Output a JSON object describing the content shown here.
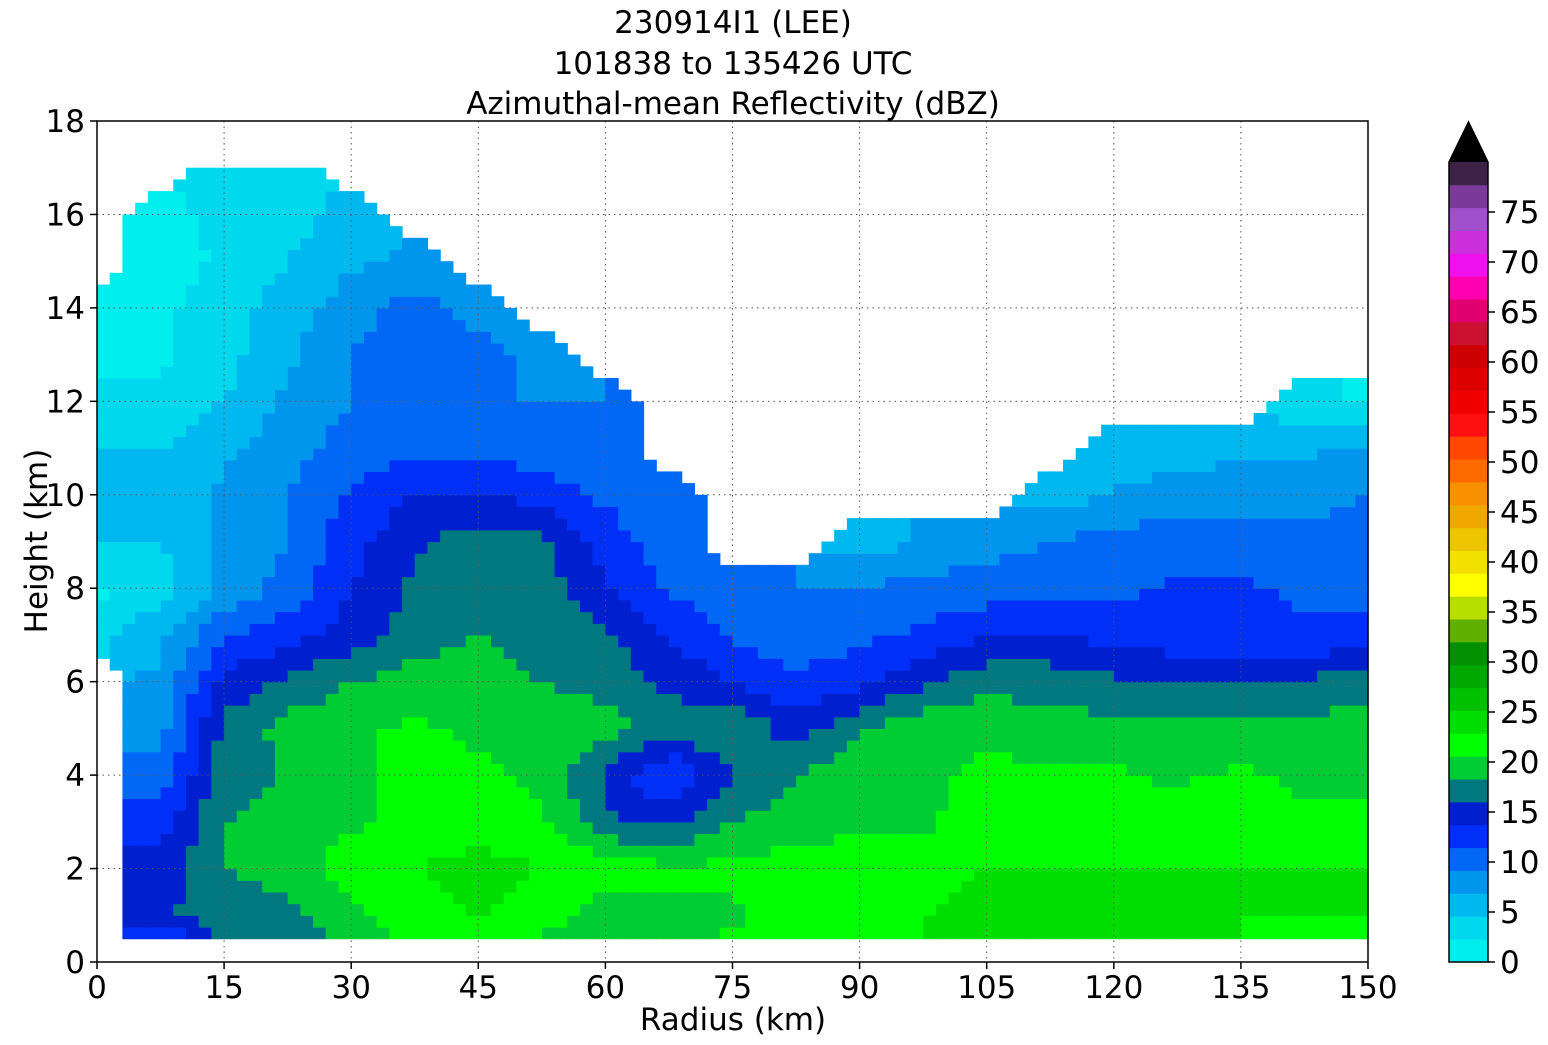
{
  "chart_data": {
    "type": "heatmap",
    "title_lines": [
      "230914I1 (LEE)",
      "101838 to 135426 UTC",
      "Azimuthal-mean Reflectivity (dBZ)"
    ],
    "xlabel": "Radius (km)",
    "ylabel": "Height (km)",
    "xlim": [
      0,
      150
    ],
    "ylim": [
      0,
      18
    ],
    "x_ticks": [
      "0",
      "15",
      "30",
      "45",
      "60",
      "75",
      "90",
      "105",
      "120",
      "135",
      "150"
    ],
    "y_ticks": [
      "0",
      "2",
      "4",
      "6",
      "8",
      "10",
      "12",
      "14",
      "16",
      "18"
    ],
    "grid": true,
    "colorbar": {
      "range": [
        0,
        80
      ],
      "level_step": 2.5,
      "extend": "max",
      "ticks": [
        "0",
        "5",
        "10",
        "15",
        "20",
        "25",
        "30",
        "35",
        "40",
        "45",
        "50",
        "55",
        "60",
        "65",
        "70",
        "75"
      ],
      "colors": [
        "#00eeee",
        "#00d8ee",
        "#00b8f0",
        "#0096ee",
        "#0068f4",
        "#0030f8",
        "#0020d0",
        "#007880",
        "#00cc33",
        "#00ff00",
        "#00dd00",
        "#00c000",
        "#00a800",
        "#009000",
        "#60b000",
        "#b8dd00",
        "#ffff00",
        "#f4e000",
        "#ecc400",
        "#f0a800",
        "#f89000",
        "#ff6a00",
        "#ff4800",
        "#ff1010",
        "#ee0000",
        "#dd0000",
        "#cc0000",
        "#cc1030",
        "#e00070",
        "#ff00b0",
        "#ee10ee",
        "#cc30dd",
        "#a050cc",
        "#7a3a99",
        "#3d2248"
      ],
      "extend_color": "#000000"
    },
    "field": {
      "x_km": [
        0,
        7.5,
        15,
        22.5,
        30,
        37.5,
        45,
        52.5,
        60,
        67.5,
        75,
        82.5,
        90,
        97.5,
        105,
        112.5,
        120,
        127.5,
        135,
        142.5,
        150
      ],
      "z_km": [
        0.5,
        1,
        2,
        3,
        4,
        5,
        6,
        7,
        8,
        9,
        10,
        11,
        12,
        13,
        14,
        15,
        16,
        17
      ],
      "dbz": [
        [
          null,
          12,
          19,
          18,
          21,
          23,
          24,
          22,
          20,
          21,
          23,
          24,
          24,
          25,
          26,
          26,
          26,
          25,
          25,
          24,
          24
        ],
        [
          null,
          17,
          19,
          19,
          22,
          24,
          25,
          24,
          21,
          22,
          22,
          24,
          24,
          25,
          26,
          26,
          26,
          25,
          25,
          25,
          25
        ],
        [
          null,
          16,
          20,
          21,
          24,
          25,
          26,
          25,
          24,
          23,
          23,
          24,
          24,
          24,
          25,
          25,
          25,
          25,
          25,
          25,
          25
        ],
        [
          null,
          14,
          20,
          21,
          22,
          23,
          24,
          23,
          18,
          17,
          20,
          21,
          22,
          22,
          24,
          24,
          23,
          24,
          24,
          23,
          23
        ],
        [
          null,
          11,
          19,
          20,
          22,
          23,
          23,
          22,
          17,
          12,
          17,
          20,
          22,
          22,
          23,
          23,
          23,
          22,
          23,
          22,
          22
        ],
        [
          null,
          9,
          18,
          21,
          22,
          23,
          22,
          22,
          21,
          19,
          20,
          16,
          20,
          22,
          22,
          21,
          21,
          21,
          21,
          21,
          21
        ],
        [
          null,
          8,
          16,
          18,
          20,
          21,
          21,
          20,
          19,
          17,
          15,
          13,
          14,
          17,
          19,
          19,
          18,
          18,
          18,
          18,
          19
        ],
        [
          4,
          7,
          12,
          14,
          16,
          19,
          20,
          19,
          18,
          15,
          12,
          11,
          12,
          13,
          15,
          15,
          14,
          13,
          13,
          13,
          13
        ],
        [
          2,
          4,
          8,
          11,
          15,
          18,
          20,
          19,
          15,
          12,
          11,
          10,
          10,
          11,
          11,
          12,
          12,
          13,
          13,
          12,
          12
        ],
        [
          5,
          5,
          8,
          10,
          14,
          17,
          19,
          18,
          14,
          11,
          null,
          null,
          6,
          8,
          9,
          10,
          11,
          11,
          11,
          11,
          11
        ],
        [
          6,
          6,
          8,
          10,
          13,
          15,
          15,
          14,
          12,
          10,
          null,
          null,
          null,
          null,
          null,
          6,
          8,
          9,
          9,
          9,
          10
        ],
        [
          5,
          5,
          7,
          9,
          11,
          12,
          12,
          11,
          10,
          null,
          null,
          null,
          null,
          null,
          null,
          null,
          5,
          6,
          7,
          7,
          8
        ],
        [
          3,
          3,
          5,
          8,
          10,
          11,
          10,
          10,
          10,
          null,
          null,
          null,
          null,
          null,
          null,
          null,
          null,
          null,
          null,
          3,
          2
        ],
        [
          2,
          2,
          4,
          7,
          10,
          12,
          11,
          9,
          null,
          null,
          null,
          null,
          null,
          null,
          null,
          null,
          null,
          null,
          null,
          null,
          null
        ],
        [
          1,
          2,
          4,
          6,
          9,
          11,
          9,
          null,
          null,
          null,
          null,
          null,
          null,
          null,
          null,
          null,
          null,
          null,
          null,
          null,
          null
        ],
        [
          null,
          1,
          3,
          5,
          7,
          8,
          null,
          null,
          null,
          null,
          null,
          null,
          null,
          null,
          null,
          null,
          null,
          null,
          null,
          null,
          null
        ],
        [
          null,
          2,
          3,
          4,
          6,
          null,
          null,
          null,
          null,
          null,
          null,
          null,
          null,
          null,
          null,
          null,
          null,
          null,
          null,
          null,
          null
        ],
        [
          null,
          null,
          3,
          4,
          null,
          null,
          null,
          null,
          null,
          null,
          null,
          null,
          null,
          null,
          null,
          null,
          null,
          null,
          null,
          null,
          null
        ]
      ]
    }
  }
}
